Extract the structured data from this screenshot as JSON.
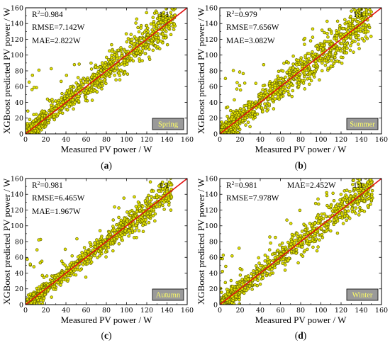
{
  "colors": {
    "marker_stroke": "#6b6b00",
    "marker_fill": "#e6e600",
    "fit_line": "#e01010",
    "season_box_fill": "#9a9a9a",
    "season_text": "#ffff66"
  },
  "chart_data": [
    {
      "type": "scatter",
      "season": "Spring",
      "caption_letter": "a",
      "xlabel": "Measured PV power / W",
      "ylabel": "XGBoost predicted PV power / W",
      "xlim": [
        0,
        160
      ],
      "ylim": [
        0,
        160
      ],
      "xticks": [
        "0",
        "20",
        "40",
        "60",
        "80",
        "100",
        "120",
        "140",
        "160"
      ],
      "yticks": [
        "0",
        "20",
        "40",
        "60",
        "80",
        "100",
        "120",
        "140",
        "160"
      ],
      "ratio_label": "1:1",
      "stats": [
        "=0.984",
        "RMSE=7.142W",
        "MAE=2.822W"
      ],
      "r2_prefix": "R",
      "r2_sup": "2",
      "line": [
        [
          0,
          0
        ],
        [
          160,
          160
        ]
      ],
      "approx_points": 1100,
      "spread": 9,
      "max_x": 148,
      "outlier_fraction": 0.06
    },
    {
      "type": "scatter",
      "season": "Summer",
      "caption_letter": "b",
      "xlabel": "Measured PV power / W",
      "ylabel": "XGBoost predicted PV power / W",
      "xlim": [
        0,
        160
      ],
      "ylim": [
        0,
        160
      ],
      "xticks": [
        "0",
        "20",
        "40",
        "60",
        "80",
        "100",
        "120",
        "140",
        "160"
      ],
      "yticks": [
        "0",
        "20",
        "40",
        "60",
        "80",
        "100",
        "120",
        "140",
        "160"
      ],
      "ratio_label": "1:1",
      "stats": [
        "=0.979",
        "RMSE=7.656W",
        "MAE=3.082W"
      ],
      "r2_prefix": "R",
      "r2_sup": "2",
      "line": [
        [
          0,
          0
        ],
        [
          160,
          160
        ]
      ],
      "approx_points": 1100,
      "spread": 10,
      "max_x": 150,
      "outlier_fraction": 0.07
    },
    {
      "type": "scatter",
      "season": "Autumn",
      "caption_letter": "c",
      "xlabel": "Measured PV power / W",
      "ylabel": "XGBoost predicted PV power / W",
      "xlim": [
        0,
        160
      ],
      "ylim": [
        0,
        160
      ],
      "xticks": [
        "0",
        "20",
        "40",
        "60",
        "80",
        "100",
        "120",
        "140",
        "160"
      ],
      "yticks": [
        "0",
        "20",
        "40",
        "60",
        "80",
        "100",
        "120",
        "140",
        "160"
      ],
      "ratio_label": "1:1",
      "stats": [
        "=0.981",
        "RMSE=6.465W",
        "MAE=1.967W"
      ],
      "r2_prefix": "R",
      "r2_sup": "2",
      "line": [
        [
          0,
          0
        ],
        [
          160,
          160
        ]
      ],
      "approx_points": 950,
      "spread": 7,
      "max_x": 145,
      "outlier_fraction": 0.05
    },
    {
      "type": "scatter",
      "season": "Winter",
      "caption_letter": "d",
      "xlabel": "Measured PV power / W",
      "ylabel": "XGBoost predicted PV power / W",
      "xlim": [
        0,
        160
      ],
      "ylim": [
        0,
        160
      ],
      "xticks": [
        "0",
        "20",
        "40",
        "60",
        "80",
        "100",
        "120",
        "140",
        "160"
      ],
      "yticks": [
        "0",
        "20",
        "40",
        "60",
        "80",
        "100",
        "120",
        "140",
        "160"
      ],
      "ratio_label": "1:1",
      "stats": [
        "=0.981",
        "MAE=2.452W",
        "RMSE=7.978W"
      ],
      "r2_prefix": "R",
      "r2_sup": "2",
      "line": [
        [
          0,
          0
        ],
        [
          160,
          160
        ]
      ],
      "approx_points": 1000,
      "spread": 8,
      "max_x": 152,
      "outlier_fraction": 0.05
    }
  ]
}
